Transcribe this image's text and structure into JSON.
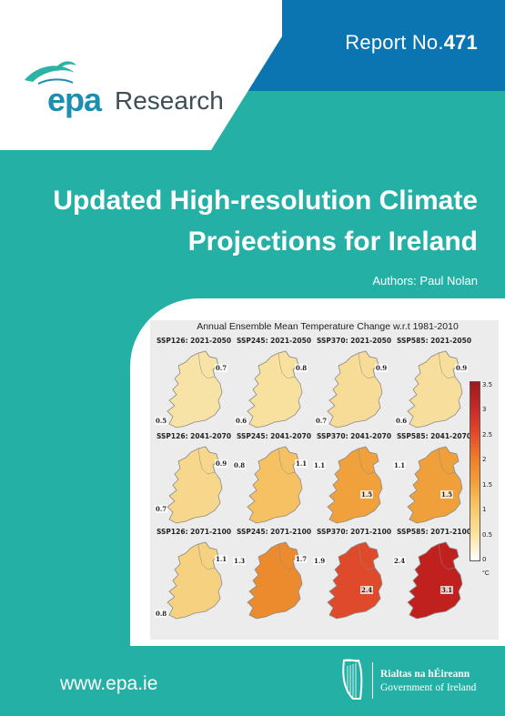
{
  "header": {
    "report_label": "Report No.",
    "report_number": "471"
  },
  "logo": {
    "epa": "epa",
    "research": "Research"
  },
  "title_line1": "Updated High-resolution Climate",
  "title_line2": "Projections for Ireland",
  "authors": "Authors: Paul Nolan",
  "figure": {
    "title": "Annual Ensemble Mean Temperature Change w.r.t 1981-2010",
    "maps": [
      {
        "label": "SSP126: 2021-2050",
        "values": [
          "0.7",
          "0.5"
        ],
        "fill": "#f8e3a6"
      },
      {
        "label": "SSP245: 2021-2050",
        "values": [
          "0.8",
          "0.6"
        ],
        "fill": "#f8e09f"
      },
      {
        "label": "SSP370: 2021-2050",
        "values": [
          "0.9",
          "0.7"
        ],
        "fill": "#f7dc98"
      },
      {
        "label": "SSP585: 2021-2050",
        "values": [
          "0.9",
          "0.6"
        ],
        "fill": "#f7de9c"
      },
      {
        "label": "SSP126: 2041-2070",
        "values": [
          "0.9",
          "0.7"
        ],
        "fill": "#f6d78b"
      },
      {
        "label": "SSP245: 2041-2070",
        "values": [
          "1.1",
          "0.8"
        ],
        "fill": "#f5c163"
      },
      {
        "label": "SSP370: 2041-2070",
        "values": [
          "1.1",
          "1.5"
        ],
        "fill": "#f0a13c"
      },
      {
        "label": "SSP585: 2041-2070",
        "values": [
          "1.1",
          "1.5"
        ],
        "fill": "#f0a03b"
      },
      {
        "label": "SSP126: 2071-2100",
        "values": [
          "1.1",
          "0.8"
        ],
        "fill": "#f6d280"
      },
      {
        "label": "SSP245: 2071-2100",
        "values": [
          "1.7",
          "1.3"
        ],
        "fill": "#ec8a2e"
      },
      {
        "label": "SSP370: 2071-2100",
        "values": [
          "1.9",
          "2.4"
        ],
        "fill": "#df4b2a"
      },
      {
        "label": "SSP585: 2071-2100",
        "values": [
          "2.4",
          "3.1"
        ],
        "fill": "#c0211f"
      }
    ],
    "colorbar_ticks": [
      "3.5",
      "3",
      "2.5",
      "2",
      "1.5",
      "1",
      "0.5",
      "0"
    ],
    "colorbar_unit": "°C"
  },
  "footer": {
    "url": "www.epa.ie",
    "gov_ga": "Rialtas na hÉireann",
    "gov_en": "Government of Ireland"
  },
  "colors": {
    "teal": "#25b0a5",
    "blue": "#0b75b2",
    "epa_blue": "#1b8fb1"
  }
}
